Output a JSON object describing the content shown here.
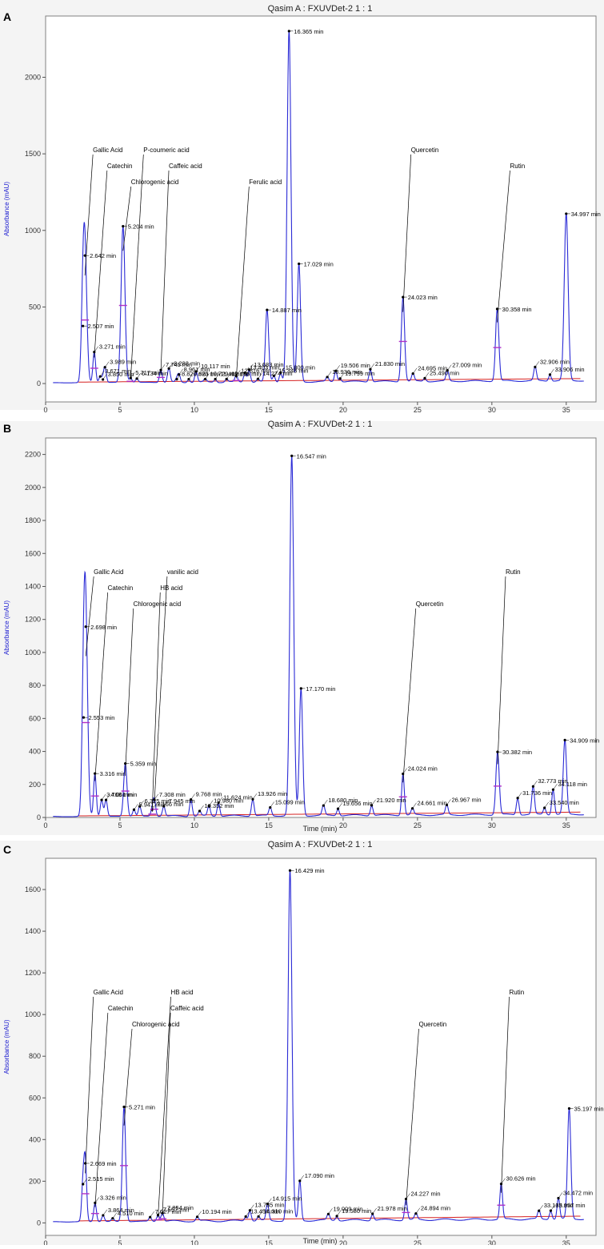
{
  "chart_data": [
    {
      "type": "line",
      "panel_label": "A",
      "title": "Qasim A : FXUVDet-2 1 : 1",
      "xlabel": "",
      "ylabel": "Absorbance (mAU)",
      "xlim": [
        0,
        37
      ],
      "ylim": [
        -120,
        2400
      ],
      "xticks": [
        "0",
        "5",
        "10",
        "15",
        "20",
        "25",
        "30",
        "35"
      ],
      "yticks": [
        "0",
        "500",
        "1000",
        "1500",
        "2000"
      ],
      "peaks": [
        {
          "t": 2.507,
          "h": 370
        },
        {
          "t": 2.642,
          "h": 830
        },
        {
          "t": 3.271,
          "h": 200
        },
        {
          "t": 3.671,
          "h": 40
        },
        {
          "t": 3.85,
          "h": 20
        },
        {
          "t": 3.989,
          "h": 100
        },
        {
          "t": 5.204,
          "h": 1020
        },
        {
          "t": 5.717,
          "h": 30
        },
        {
          "t": 6.134,
          "h": 25
        },
        {
          "t": 7.745,
          "h": 80
        },
        {
          "t": 8.288,
          "h": 90
        },
        {
          "t": 8.961,
          "h": 50
        },
        {
          "t": 8.82,
          "h": 20
        },
        {
          "t": 9.623,
          "h": 20
        },
        {
          "t": 10.117,
          "h": 70
        },
        {
          "t": 10.729,
          "h": 20
        },
        {
          "t": 11.409,
          "h": 20
        },
        {
          "t": 12.166,
          "h": 20
        },
        {
          "t": 12.816,
          "h": 40
        },
        {
          "t": 13.403,
          "h": 60
        },
        {
          "t": 13.683,
          "h": 80
        },
        {
          "t": 14.274,
          "h": 20
        },
        {
          "t": 14.887,
          "h": 470
        },
        {
          "t": 15.348,
          "h": 40
        },
        {
          "t": 15.8,
          "h": 60
        },
        {
          "t": 16.365,
          "h": 2290
        },
        {
          "t": 17.029,
          "h": 770
        },
        {
          "t": 18.936,
          "h": 30
        },
        {
          "t": 19.506,
          "h": 70
        },
        {
          "t": 19.799,
          "h": 20
        },
        {
          "t": 21.83,
          "h": 80
        },
        {
          "t": 24.023,
          "h": 550
        },
        {
          "t": 24.695,
          "h": 50
        },
        {
          "t": 25.49,
          "h": 20
        },
        {
          "t": 27.009,
          "h": 70
        },
        {
          "t": 30.358,
          "h": 470
        },
        {
          "t": 32.906,
          "h": 90
        },
        {
          "t": 33.906,
          "h": 40
        },
        {
          "t": 34.997,
          "h": 1090
        }
      ],
      "annotations": [
        {
          "text": "Gallic Acid",
          "t": 2.642
        },
        {
          "text": "Catechin",
          "t": 3.271
        },
        {
          "text": "Chlorogenic acid",
          "t": 5.204
        },
        {
          "text": "P-coumeric acid",
          "t": 5.717
        },
        {
          "text": "Caffeic acid",
          "t": 7.745
        },
        {
          "text": "Ferulic acid",
          "t": 12.816
        },
        {
          "text": "Quercetin",
          "t": 24.023
        },
        {
          "text": "Rutin",
          "t": 30.358
        }
      ],
      "peak_labels": [
        "2.507 min",
        "2.642 min",
        "3.271 min",
        "3.671 min",
        "3.850 min",
        "3.989 min",
        "5.204 min",
        "5.717 min",
        "6.134 min",
        "7.745 min",
        "8.288 min",
        "8.961 min",
        "8.820 min",
        "9.623 min",
        "10.117 min",
        "10.729 min",
        "11.409 min",
        "12.166 min",
        "12.816 min",
        "13.403 min",
        "13.683 min",
        "14.274 min",
        "14.887 min",
        "15.348 min",
        "15.800 min",
        "16.365 min",
        "17.029 min",
        "18.936 min",
        "19.506 min",
        "19.799 min",
        "21.830 min",
        "24.023 min",
        "24.695 min",
        "25.490 min",
        "27.009 min",
        "30.358 min",
        "32.906 min",
        "33.906 min",
        "34.997 min"
      ],
      "compound_labels": [
        "Gallic Acid",
        "Catechin",
        "Chlorogenic acid",
        "P-coumeric acid",
        "Caffeic acid",
        "Ferulic acid",
        "Quercetin",
        "Rutin"
      ]
    },
    {
      "type": "line",
      "panel_label": "B",
      "title": "Qasim A : FXUVDet-2 1 : 1",
      "xlabel": "Time (min)",
      "ylabel": "Absorbance (mAU)",
      "xlim": [
        0,
        37
      ],
      "ylim": [
        0,
        2300
      ],
      "xticks": [
        "0",
        "5",
        "10",
        "15",
        "20",
        "25",
        "30",
        "35"
      ],
      "yticks": [
        "0",
        "200",
        "400",
        "600",
        "800",
        "1000",
        "1200",
        "1400",
        "1600",
        "1800",
        "2000",
        "2200"
      ],
      "peaks": [
        {
          "t": 2.553,
          "h": 600
        },
        {
          "t": 2.698,
          "h": 1150
        },
        {
          "t": 3.316,
          "h": 260
        },
        {
          "t": 3.768,
          "h": 100
        },
        {
          "t": 4.061,
          "h": 100
        },
        {
          "t": 5.359,
          "h": 320
        },
        {
          "t": 5.941,
          "h": 40
        },
        {
          "t": 6.325,
          "h": 60
        },
        {
          "t": 7.308,
          "h": 100
        },
        {
          "t": 7.166,
          "h": 40
        },
        {
          "t": 7.945,
          "h": 60
        },
        {
          "t": 9.768,
          "h": 100
        },
        {
          "t": 10.352,
          "h": 30
        },
        {
          "t": 10.98,
          "h": 60
        },
        {
          "t": 11.624,
          "h": 80
        },
        {
          "t": 13.926,
          "h": 100
        },
        {
          "t": 15.099,
          "h": 50
        },
        {
          "t": 16.547,
          "h": 2180
        },
        {
          "t": 17.17,
          "h": 770
        },
        {
          "t": 18.68,
          "h": 60
        },
        {
          "t": 19.656,
          "h": 40
        },
        {
          "t": 21.92,
          "h": 60
        },
        {
          "t": 24.024,
          "h": 250
        },
        {
          "t": 24.661,
          "h": 40
        },
        {
          "t": 26.967,
          "h": 60
        },
        {
          "t": 30.382,
          "h": 380
        },
        {
          "t": 31.736,
          "h": 100
        },
        {
          "t": 32.773,
          "h": 170
        },
        {
          "t": 33.54,
          "h": 40
        },
        {
          "t": 34.118,
          "h": 150
        },
        {
          "t": 34.909,
          "h": 450
        }
      ],
      "annotations": [
        {
          "text": "Gallic Acid",
          "t": 2.698
        },
        {
          "text": "Catechin",
          "t": 3.316
        },
        {
          "text": "Chlorogenic acid",
          "t": 5.359
        },
        {
          "text": "vanilic acid",
          "t": 7.308
        },
        {
          "text": "HB acid",
          "t": 7.166
        },
        {
          "text": "Quercetin",
          "t": 24.024
        },
        {
          "text": "Rutin",
          "t": 30.382
        }
      ],
      "peak_labels": [
        "2.553 min",
        "2.698 min",
        "3.316 min",
        "3.768 min",
        "4.061 min",
        "5.359 min",
        "5.941 min",
        "6.325 min",
        "7.308 min",
        "7.166 min",
        "7.945 min",
        "9.768 min",
        "10.352 min",
        "10.980 min",
        "11.624 min",
        "13.926 min",
        "15.099 min",
        "16.547 min",
        "17.170 min",
        "18.680 min",
        "19.656 min",
        "21.920 min",
        "24.024 min",
        "24.661 min",
        "26.967 min",
        "30.382 min",
        "31.736 min",
        "32.773 min",
        "33.540 min",
        "34.118 min",
        "34.909 min"
      ],
      "compound_labels": [
        "Gallic Acid",
        "Catechin",
        "Chlorogenic acid",
        "vanilic acid",
        "HB acid",
        "Quercetin",
        "Rutin"
      ]
    },
    {
      "type": "line",
      "panel_label": "C",
      "title": "Qasim A : FXUVDet-2 1 : 1",
      "xlabel": "Time (min)",
      "ylabel": "Absorbance (mAU)",
      "xlim": [
        0,
        37
      ],
      "ylim": [
        -60,
        1750
      ],
      "xticks": [
        "0",
        "5",
        "10",
        "15",
        "20",
        "25",
        "30",
        "35"
      ],
      "yticks": [
        "0",
        "200",
        "400",
        "600",
        "800",
        "1000",
        "1200",
        "1400",
        "1600"
      ],
      "peaks": [
        {
          "t": 2.515,
          "h": 180
        },
        {
          "t": 2.669,
          "h": 280
        },
        {
          "t": 3.326,
          "h": 90
        },
        {
          "t": 3.864,
          "h": 30
        },
        {
          "t": 4.51,
          "h": 15
        },
        {
          "t": 5.271,
          "h": 550
        },
        {
          "t": 7.027,
          "h": 20
        },
        {
          "t": 7.557,
          "h": 30
        },
        {
          "t": 7.854,
          "h": 40
        },
        {
          "t": 10.194,
          "h": 20
        },
        {
          "t": 13.454,
          "h": 20
        },
        {
          "t": 13.735,
          "h": 50
        },
        {
          "t": 14.31,
          "h": 20
        },
        {
          "t": 14.915,
          "h": 80
        },
        {
          "t": 16.429,
          "h": 1680
        },
        {
          "t": 17.09,
          "h": 190
        },
        {
          "t": 19.009,
          "h": 30
        },
        {
          "t": 19.58,
          "h": 20
        },
        {
          "t": 21.978,
          "h": 30
        },
        {
          "t": 24.227,
          "h": 100
        },
        {
          "t": 24.894,
          "h": 30
        },
        {
          "t": 30.626,
          "h": 170
        },
        {
          "t": 33.165,
          "h": 40
        },
        {
          "t": 33.957,
          "h": 40
        },
        {
          "t": 34.472,
          "h": 100
        },
        {
          "t": 35.197,
          "h": 530
        }
      ],
      "annotations": [
        {
          "text": "Gallic Acid",
          "t": 2.669
        },
        {
          "text": "Catechin",
          "t": 3.326
        },
        {
          "text": "Chlorogenic acid",
          "t": 5.271
        },
        {
          "text": "HB acid",
          "t": 7.557
        },
        {
          "text": "Caffeic acid",
          "t": 7.854
        },
        {
          "text": "Quercetin",
          "t": 24.227
        },
        {
          "text": "Rutin",
          "t": 30.626
        }
      ],
      "peak_labels": [
        "2.515 min",
        "2.669 min",
        "3.326 min",
        "3.864 min",
        "4.510 min",
        "5.271 min",
        "7.027 min",
        "7.557 min",
        "7.854 min",
        "10.194 min",
        "13.454 min",
        "13.735 min",
        "14.310 min",
        "14.915 min",
        "16.429 min",
        "17.090 min",
        "19.009 min",
        "19.580 min",
        "21.978 min",
        "24.227 min",
        "24.894 min",
        "30.626 min",
        "33.165 min",
        "33.957 min",
        "34.472 min",
        "35.197 min"
      ],
      "compound_labels": [
        "Gallic Acid",
        "Catechin",
        "Chlorogenic acid",
        "HB acid",
        "Caffeic acid",
        "Quercetin",
        "Rutin"
      ]
    }
  ],
  "colors": {
    "trace": "#2b2bd6",
    "baseline": "#d62020",
    "integration": "#b030c8",
    "annotation": "#000000",
    "axis_label": "#1a1ad0",
    "plot_bg": "#ffffff",
    "frame_bg": "#f4f4f4"
  }
}
